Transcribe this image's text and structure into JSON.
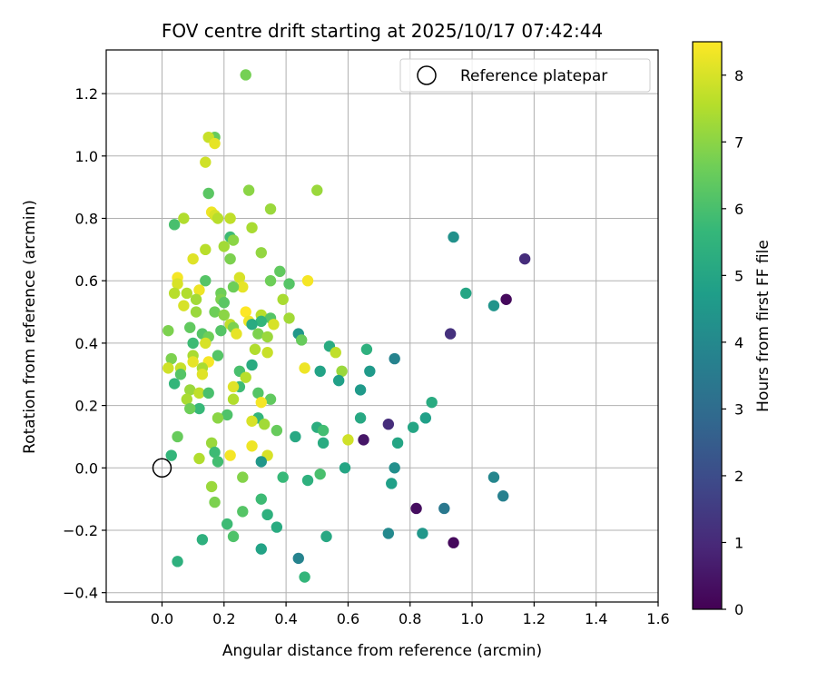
{
  "chart_data": {
    "type": "scatter",
    "title": "FOV centre drift starting at 2025/10/17 07:42:44",
    "xlabel": "Angular distance from reference (arcmin)",
    "ylabel": "Rotation from reference (arcmin)",
    "xlim": [
      -0.18,
      1.6
    ],
    "ylim": [
      -0.43,
      1.34
    ],
    "xticks": [
      0.0,
      0.2,
      0.4,
      0.6,
      0.8,
      1.0,
      1.2,
      1.4,
      1.6
    ],
    "xtick_labels": [
      "0.0",
      "0.2",
      "0.4",
      "0.6",
      "0.8",
      "1.0",
      "1.2",
      "1.4",
      "1.6"
    ],
    "yticks": [
      -0.4,
      -0.2,
      0.0,
      0.2,
      0.4,
      0.6,
      0.8,
      1.0,
      1.2
    ],
    "ytick_labels": [
      "−0.4",
      "−0.2",
      "0.0",
      "0.2",
      "0.4",
      "0.6",
      "0.8",
      "1.0",
      "1.2"
    ],
    "grid": true,
    "legend": {
      "position": "top-right",
      "entries": [
        "Reference platepar"
      ]
    },
    "reference_point": {
      "x": 0.0,
      "y": 0.0,
      "label": "Reference platepar"
    },
    "colorbar": {
      "label": "Hours from first FF file",
      "min": 0,
      "max": 8.5,
      "ticks": [
        0,
        1,
        2,
        3,
        4,
        5,
        6,
        7,
        8
      ],
      "tick_labels": [
        "0",
        "1",
        "2",
        "3",
        "4",
        "5",
        "6",
        "7",
        "8"
      ],
      "colormap": "viridis",
      "colormap_stops": [
        "#440154",
        "#482878",
        "#3e4989",
        "#31688e",
        "#26828e",
        "#1f9e89",
        "#35b779",
        "#6ece58",
        "#b5de2b",
        "#fde725"
      ]
    },
    "points": [
      {
        "x": 0.27,
        "y": 1.26,
        "h": 6.7
      },
      {
        "x": 0.17,
        "y": 1.06,
        "h": 6.5
      },
      {
        "x": 0.15,
        "y": 1.06,
        "h": 7.8
      },
      {
        "x": 0.17,
        "y": 1.04,
        "h": 8.2
      },
      {
        "x": 0.14,
        "y": 0.98,
        "h": 7.9
      },
      {
        "x": 0.28,
        "y": 0.89,
        "h": 7.0
      },
      {
        "x": 0.5,
        "y": 0.89,
        "h": 7.2
      },
      {
        "x": 0.15,
        "y": 0.88,
        "h": 6.3
      },
      {
        "x": 0.35,
        "y": 0.83,
        "h": 7.2
      },
      {
        "x": 0.16,
        "y": 0.82,
        "h": 8.3
      },
      {
        "x": 0.17,
        "y": 0.81,
        "h": 8.0
      },
      {
        "x": 0.18,
        "y": 0.8,
        "h": 7.6
      },
      {
        "x": 0.07,
        "y": 0.8,
        "h": 7.5
      },
      {
        "x": 0.22,
        "y": 0.8,
        "h": 7.7
      },
      {
        "x": 0.04,
        "y": 0.78,
        "h": 6.0
      },
      {
        "x": 0.29,
        "y": 0.77,
        "h": 7.4
      },
      {
        "x": 0.94,
        "y": 0.74,
        "h": 4.3
      },
      {
        "x": 0.22,
        "y": 0.74,
        "h": 5.8
      },
      {
        "x": 0.23,
        "y": 0.73,
        "h": 7.0
      },
      {
        "x": 0.2,
        "y": 0.71,
        "h": 7.3
      },
      {
        "x": 0.14,
        "y": 0.7,
        "h": 7.6
      },
      {
        "x": 0.32,
        "y": 0.69,
        "h": 7.1
      },
      {
        "x": 0.22,
        "y": 0.67,
        "h": 6.8
      },
      {
        "x": 0.1,
        "y": 0.67,
        "h": 8.1
      },
      {
        "x": 1.17,
        "y": 0.67,
        "h": 1.1
      },
      {
        "x": 0.38,
        "y": 0.63,
        "h": 6.4
      },
      {
        "x": 0.25,
        "y": 0.61,
        "h": 8.0
      },
      {
        "x": 0.05,
        "y": 0.61,
        "h": 8.4
      },
      {
        "x": 0.35,
        "y": 0.6,
        "h": 6.6
      },
      {
        "x": 0.14,
        "y": 0.6,
        "h": 6.2
      },
      {
        "x": 0.47,
        "y": 0.6,
        "h": 8.4
      },
      {
        "x": 0.05,
        "y": 0.59,
        "h": 8.0
      },
      {
        "x": 0.41,
        "y": 0.59,
        "h": 6.2
      },
      {
        "x": 0.26,
        "y": 0.58,
        "h": 8.2
      },
      {
        "x": 0.23,
        "y": 0.58,
        "h": 6.6
      },
      {
        "x": 0.12,
        "y": 0.57,
        "h": 8.3
      },
      {
        "x": 0.08,
        "y": 0.56,
        "h": 7.5
      },
      {
        "x": 0.04,
        "y": 0.56,
        "h": 7.6
      },
      {
        "x": 0.98,
        "y": 0.56,
        "h": 5.0
      },
      {
        "x": 0.19,
        "y": 0.56,
        "h": 6.6
      },
      {
        "x": 0.19,
        "y": 0.54,
        "h": 6.8
      },
      {
        "x": 0.11,
        "y": 0.54,
        "h": 7.3
      },
      {
        "x": 0.39,
        "y": 0.54,
        "h": 7.4
      },
      {
        "x": 0.2,
        "y": 0.53,
        "h": 6.3
      },
      {
        "x": 1.11,
        "y": 0.54,
        "h": 0.2
      },
      {
        "x": 0.07,
        "y": 0.52,
        "h": 8.0
      },
      {
        "x": 1.07,
        "y": 0.52,
        "h": 4.4
      },
      {
        "x": 0.11,
        "y": 0.5,
        "h": 7.2
      },
      {
        "x": 0.17,
        "y": 0.5,
        "h": 6.6
      },
      {
        "x": 0.27,
        "y": 0.5,
        "h": 8.5
      },
      {
        "x": 0.32,
        "y": 0.49,
        "h": 7.6
      },
      {
        "x": 0.35,
        "y": 0.48,
        "h": 6.2
      },
      {
        "x": 0.2,
        "y": 0.49,
        "h": 7.0
      },
      {
        "x": 0.32,
        "y": 0.47,
        "h": 5.6
      },
      {
        "x": 0.28,
        "y": 0.47,
        "h": 8.3
      },
      {
        "x": 0.41,
        "y": 0.48,
        "h": 7.3
      },
      {
        "x": 0.22,
        "y": 0.46,
        "h": 7.7
      },
      {
        "x": 0.36,
        "y": 0.46,
        "h": 8.0
      },
      {
        "x": 0.29,
        "y": 0.46,
        "h": 5.2
      },
      {
        "x": 0.09,
        "y": 0.45,
        "h": 6.4
      },
      {
        "x": 0.23,
        "y": 0.45,
        "h": 6.8
      },
      {
        "x": 0.02,
        "y": 0.44,
        "h": 6.8
      },
      {
        "x": 0.19,
        "y": 0.44,
        "h": 6.2
      },
      {
        "x": 0.93,
        "y": 0.43,
        "h": 1.2
      },
      {
        "x": 0.13,
        "y": 0.43,
        "h": 6.2
      },
      {
        "x": 0.24,
        "y": 0.43,
        "h": 8.2
      },
      {
        "x": 0.31,
        "y": 0.43,
        "h": 6.8
      },
      {
        "x": 0.34,
        "y": 0.42,
        "h": 7.2
      },
      {
        "x": 0.44,
        "y": 0.43,
        "h": 4.5
      },
      {
        "x": 0.15,
        "y": 0.42,
        "h": 6.6
      },
      {
        "x": 0.1,
        "y": 0.4,
        "h": 5.8
      },
      {
        "x": 0.14,
        "y": 0.4,
        "h": 8.0
      },
      {
        "x": 0.45,
        "y": 0.41,
        "h": 6.5
      },
      {
        "x": 0.54,
        "y": 0.39,
        "h": 5.2
      },
      {
        "x": 0.3,
        "y": 0.38,
        "h": 7.5
      },
      {
        "x": 0.66,
        "y": 0.38,
        "h": 5.4
      },
      {
        "x": 0.34,
        "y": 0.37,
        "h": 7.8
      },
      {
        "x": 0.56,
        "y": 0.37,
        "h": 7.7
      },
      {
        "x": 0.1,
        "y": 0.36,
        "h": 7.4
      },
      {
        "x": 0.18,
        "y": 0.36,
        "h": 6.2
      },
      {
        "x": 0.03,
        "y": 0.35,
        "h": 6.8
      },
      {
        "x": 0.1,
        "y": 0.34,
        "h": 8.2
      },
      {
        "x": 0.15,
        "y": 0.34,
        "h": 8.4
      },
      {
        "x": 0.75,
        "y": 0.35,
        "h": 3.8
      },
      {
        "x": 0.29,
        "y": 0.33,
        "h": 5.2
      },
      {
        "x": 0.13,
        "y": 0.32,
        "h": 7.4
      },
      {
        "x": 0.06,
        "y": 0.32,
        "h": 7.8
      },
      {
        "x": 0.02,
        "y": 0.32,
        "h": 7.9
      },
      {
        "x": 0.46,
        "y": 0.32,
        "h": 8.3
      },
      {
        "x": 0.25,
        "y": 0.31,
        "h": 6.0
      },
      {
        "x": 0.51,
        "y": 0.31,
        "h": 4.9
      },
      {
        "x": 0.58,
        "y": 0.31,
        "h": 7.2
      },
      {
        "x": 0.67,
        "y": 0.31,
        "h": 4.6
      },
      {
        "x": 0.06,
        "y": 0.3,
        "h": 6.2
      },
      {
        "x": 0.13,
        "y": 0.3,
        "h": 8.1
      },
      {
        "x": 0.27,
        "y": 0.29,
        "h": 7.6
      },
      {
        "x": 0.57,
        "y": 0.28,
        "h": 4.8
      },
      {
        "x": 0.04,
        "y": 0.27,
        "h": 5.6
      },
      {
        "x": 0.25,
        "y": 0.26,
        "h": 5.8
      },
      {
        "x": 0.23,
        "y": 0.26,
        "h": 8.1
      },
      {
        "x": 0.09,
        "y": 0.25,
        "h": 7.2
      },
      {
        "x": 0.64,
        "y": 0.25,
        "h": 4.6
      },
      {
        "x": 0.12,
        "y": 0.24,
        "h": 7.7
      },
      {
        "x": 0.15,
        "y": 0.24,
        "h": 6.0
      },
      {
        "x": 0.31,
        "y": 0.24,
        "h": 6.2
      },
      {
        "x": 0.08,
        "y": 0.22,
        "h": 7.4
      },
      {
        "x": 0.23,
        "y": 0.22,
        "h": 7.5
      },
      {
        "x": 0.35,
        "y": 0.22,
        "h": 6.4
      },
      {
        "x": 0.87,
        "y": 0.21,
        "h": 5.2
      },
      {
        "x": 0.32,
        "y": 0.21,
        "h": 8.4
      },
      {
        "x": 0.12,
        "y": 0.19,
        "h": 5.7
      },
      {
        "x": 0.09,
        "y": 0.19,
        "h": 6.6
      },
      {
        "x": 0.21,
        "y": 0.17,
        "h": 6.1
      },
      {
        "x": 0.64,
        "y": 0.16,
        "h": 5.1
      },
      {
        "x": 0.18,
        "y": 0.16,
        "h": 7.0
      },
      {
        "x": 0.31,
        "y": 0.16,
        "h": 5.6
      },
      {
        "x": 0.85,
        "y": 0.16,
        "h": 4.8
      },
      {
        "x": 0.29,
        "y": 0.15,
        "h": 8.0
      },
      {
        "x": 0.33,
        "y": 0.14,
        "h": 7.3
      },
      {
        "x": 0.73,
        "y": 0.14,
        "h": 1.1
      },
      {
        "x": 0.81,
        "y": 0.13,
        "h": 5.0
      },
      {
        "x": 0.5,
        "y": 0.13,
        "h": 5.3
      },
      {
        "x": 0.52,
        "y": 0.12,
        "h": 5.9
      },
      {
        "x": 0.37,
        "y": 0.12,
        "h": 6.5
      },
      {
        "x": 0.05,
        "y": 0.1,
        "h": 6.5
      },
      {
        "x": 0.43,
        "y": 0.1,
        "h": 5.1
      },
      {
        "x": 0.65,
        "y": 0.09,
        "h": 0.5
      },
      {
        "x": 0.6,
        "y": 0.09,
        "h": 7.9
      },
      {
        "x": 0.76,
        "y": 0.08,
        "h": 5.0
      },
      {
        "x": 0.52,
        "y": 0.08,
        "h": 5.2
      },
      {
        "x": 0.16,
        "y": 0.08,
        "h": 7.2
      },
      {
        "x": 0.29,
        "y": 0.07,
        "h": 8.3
      },
      {
        "x": 0.17,
        "y": 0.05,
        "h": 5.8
      },
      {
        "x": 0.22,
        "y": 0.04,
        "h": 8.4
      },
      {
        "x": 0.34,
        "y": 0.04,
        "h": 8.0
      },
      {
        "x": 0.03,
        "y": 0.04,
        "h": 5.6
      },
      {
        "x": 0.12,
        "y": 0.03,
        "h": 7.5
      },
      {
        "x": 0.32,
        "y": 0.02,
        "h": 4.5
      },
      {
        "x": 0.18,
        "y": 0.02,
        "h": 5.9
      },
      {
        "x": 0.59,
        "y": 0.0,
        "h": 5.0
      },
      {
        "x": 0.75,
        "y": 0.0,
        "h": 4.2
      },
      {
        "x": 0.51,
        "y": -0.02,
        "h": 6.0
      },
      {
        "x": 0.26,
        "y": -0.03,
        "h": 6.9
      },
      {
        "x": 0.39,
        "y": -0.03,
        "h": 5.7
      },
      {
        "x": 1.07,
        "y": -0.03,
        "h": 3.9
      },
      {
        "x": 0.47,
        "y": -0.04,
        "h": 5.4
      },
      {
        "x": 0.74,
        "y": -0.05,
        "h": 4.8
      },
      {
        "x": 0.16,
        "y": -0.06,
        "h": 7.2
      },
      {
        "x": 1.1,
        "y": -0.09,
        "h": 3.7
      },
      {
        "x": 0.32,
        "y": -0.1,
        "h": 5.8
      },
      {
        "x": 0.17,
        "y": -0.11,
        "h": 6.8
      },
      {
        "x": 0.82,
        "y": -0.13,
        "h": 0.3
      },
      {
        "x": 0.91,
        "y": -0.13,
        "h": 3.4
      },
      {
        "x": 0.26,
        "y": -0.14,
        "h": 6.2
      },
      {
        "x": 0.34,
        "y": -0.15,
        "h": 5.4
      },
      {
        "x": 0.21,
        "y": -0.18,
        "h": 5.8
      },
      {
        "x": 0.37,
        "y": -0.19,
        "h": 5.2
      },
      {
        "x": 0.84,
        "y": -0.21,
        "h": 4.5
      },
      {
        "x": 0.73,
        "y": -0.21,
        "h": 4.0
      },
      {
        "x": 0.53,
        "y": -0.22,
        "h": 5.1
      },
      {
        "x": 0.23,
        "y": -0.22,
        "h": 6.1
      },
      {
        "x": 0.13,
        "y": -0.23,
        "h": 5.4
      },
      {
        "x": 0.94,
        "y": -0.24,
        "h": 0.2
      },
      {
        "x": 0.32,
        "y": -0.26,
        "h": 4.9
      },
      {
        "x": 0.44,
        "y": -0.29,
        "h": 3.8
      },
      {
        "x": 0.05,
        "y": -0.3,
        "h": 5.4
      },
      {
        "x": 0.46,
        "y": -0.35,
        "h": 5.6
      }
    ]
  }
}
